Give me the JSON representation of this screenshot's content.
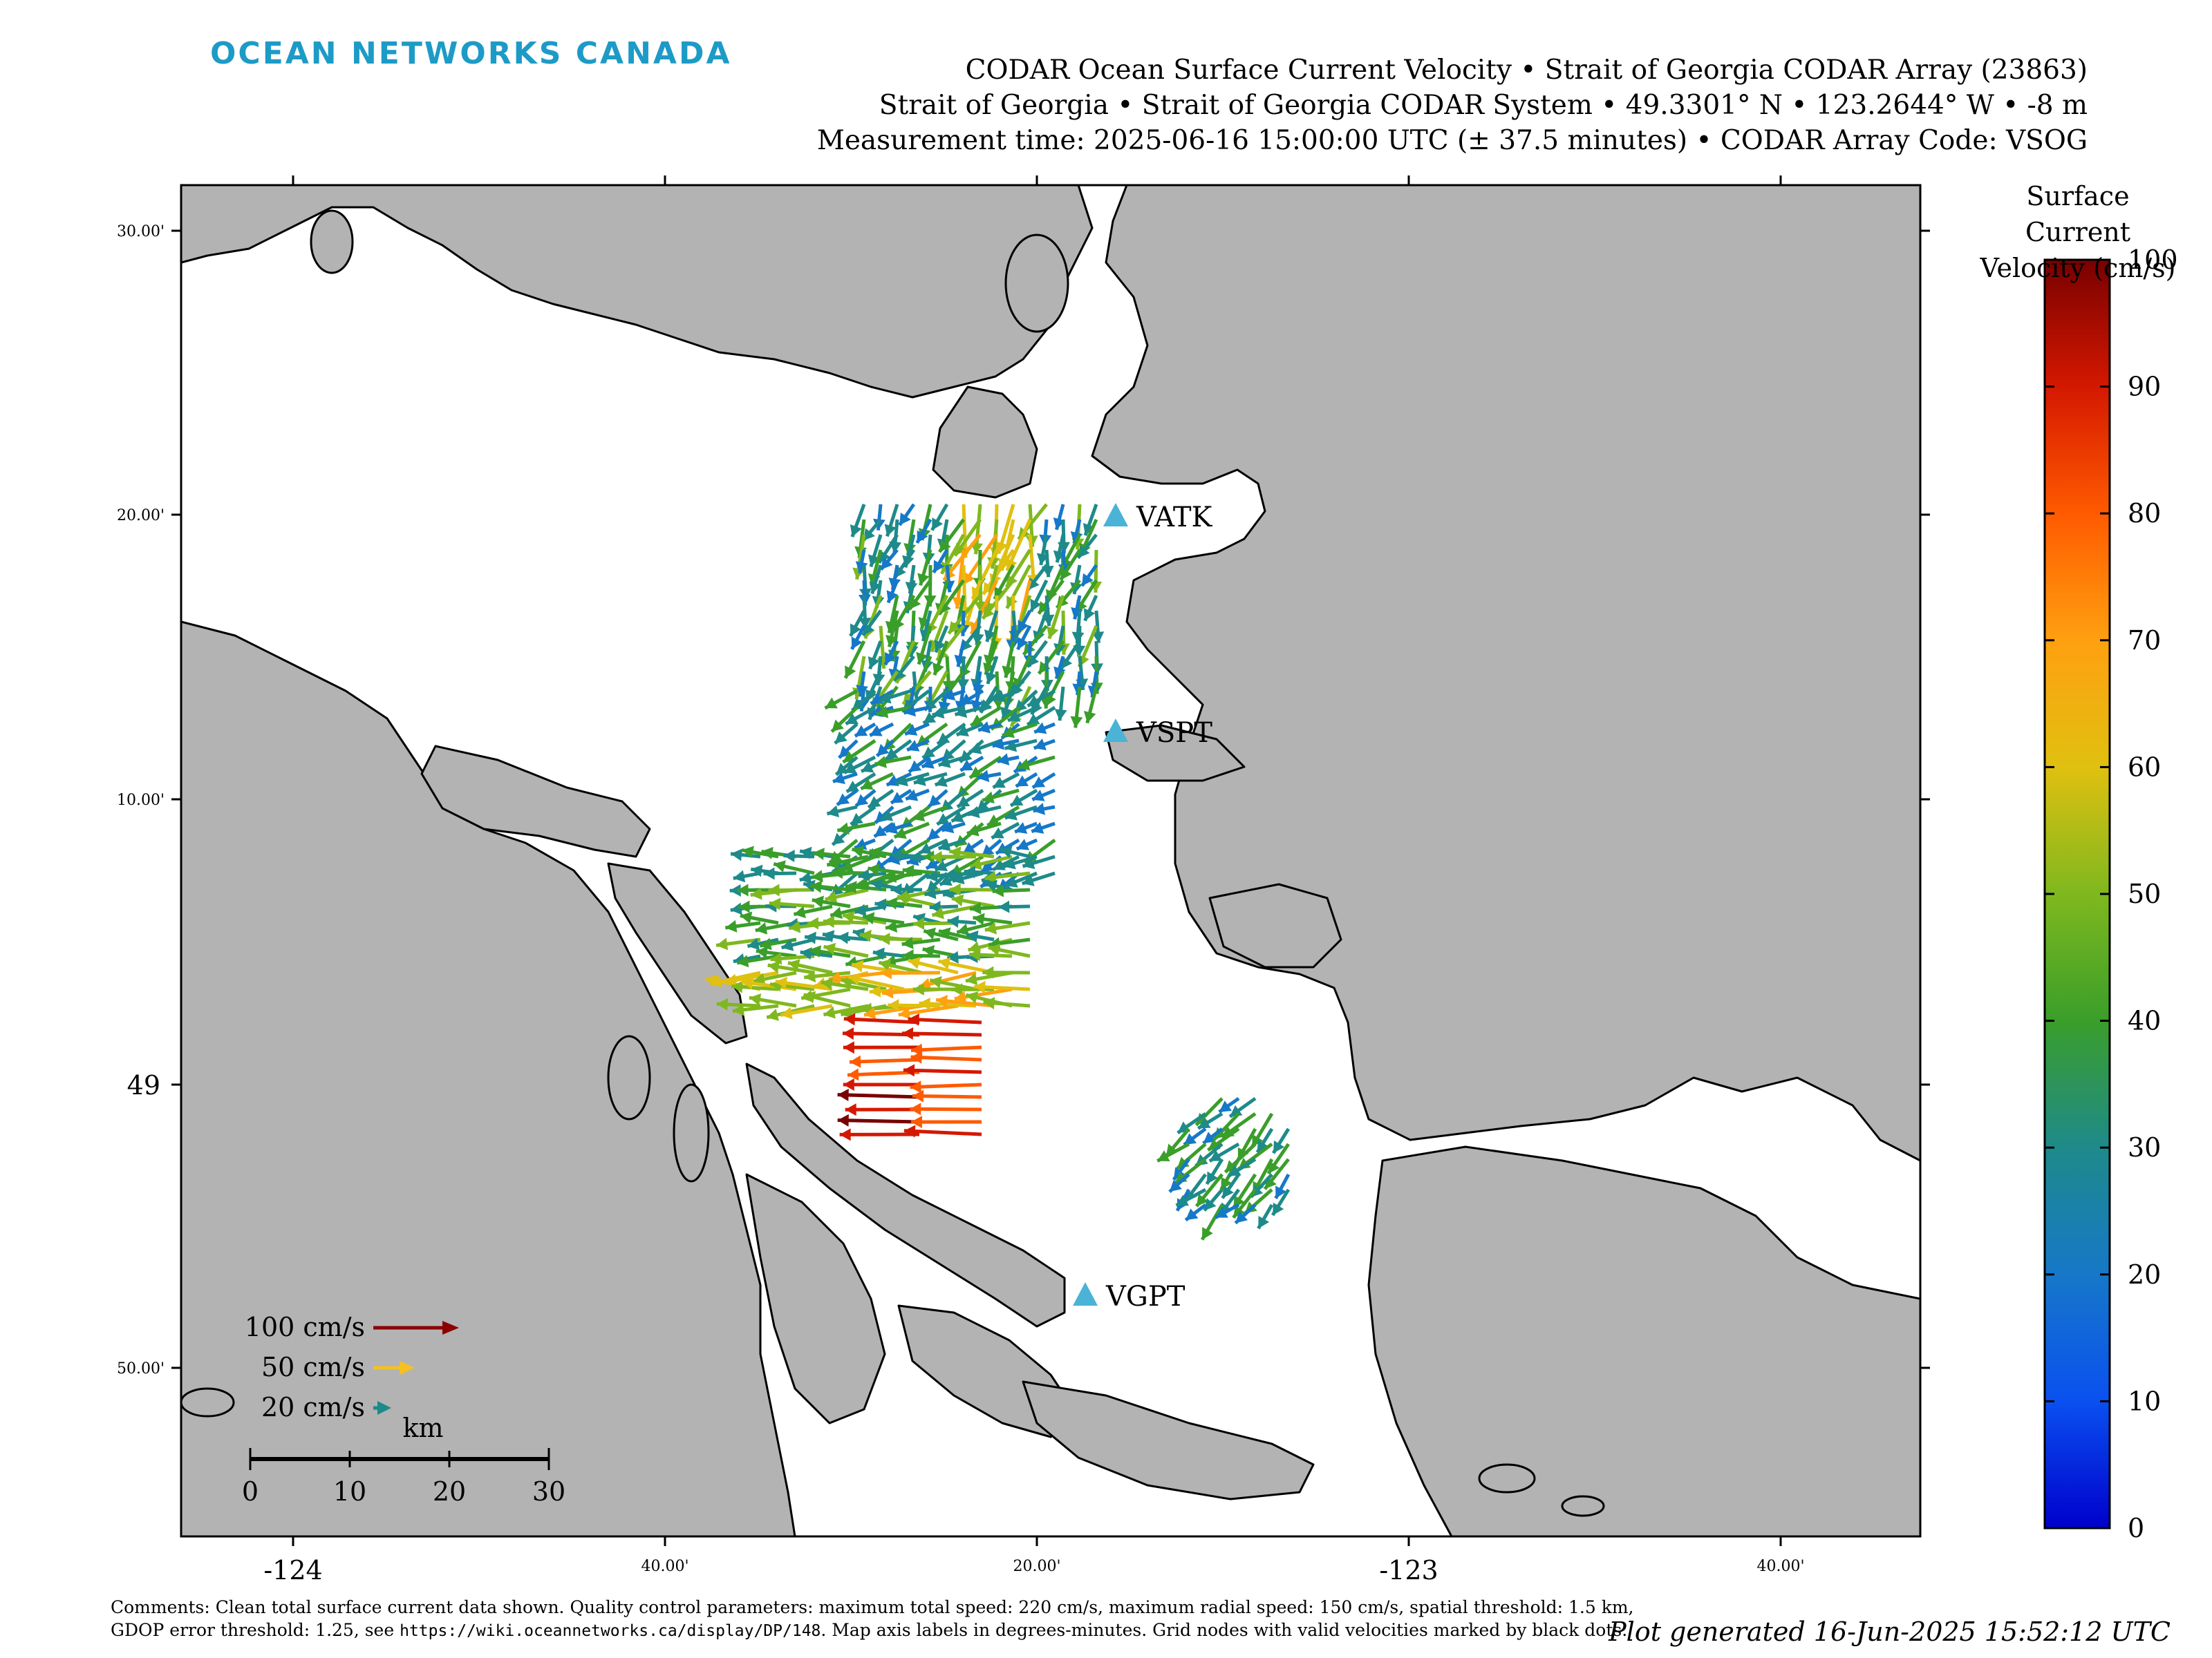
{
  "header": {
    "brand": "OCEAN NETWORKS CANADA",
    "title_line1": "CODAR Ocean Surface Current Velocity • Strait of Georgia CODAR Array (23863)",
    "title_line2": "Strait of Georgia • Strait of Georgia CODAR System • 49.3301° N • 123.2644° W • -8 m",
    "title_line3": "Measurement time: 2025-06-16 15:00:00 UTC (± 37.5 minutes) • CODAR Array Code: VSOG"
  },
  "map": {
    "colors": {
      "land": "#b3b3b3",
      "water": "#ffffff",
      "coast": "#000000",
      "station": "#4ab3d6"
    },
    "lat_ticks": [
      "30.00'",
      "20.00'",
      "10.00'",
      "49",
      "50.00'"
    ],
    "lon_ticks": [
      "-124",
      "40.00'",
      "20.00'",
      "-123",
      "40.00'"
    ],
    "stations": [
      {
        "code": "VATK",
        "icon": "triangle-marker"
      },
      {
        "code": "VSPT",
        "icon": "triangle-marker"
      },
      {
        "code": "VGPT",
        "icon": "triangle-marker"
      }
    ],
    "legend": {
      "speeds": [
        {
          "label": "100 cm/s",
          "color": "#8b0000"
        },
        {
          "label": "50 cm/s",
          "color": "#f5c020"
        },
        {
          "label": "20 cm/s",
          "color": "#1e8a8a"
        }
      ]
    },
    "scalebar": {
      "unit": "km",
      "ticks": [
        "0",
        "10",
        "20",
        "30"
      ]
    }
  },
  "colorbar": {
    "title_line1": "Surface Current",
    "title_line2": "Velocity (cm/s)",
    "min": 0,
    "max": 100,
    "ticks": [
      "0",
      "10",
      "20",
      "30",
      "40",
      "50",
      "60",
      "70",
      "80",
      "90",
      "100"
    ],
    "gradient": [
      "#0000cc",
      "#0a50f0",
      "#1678c8",
      "#1e8a8a",
      "#3a9e2a",
      "#7fb81e",
      "#e0c010",
      "#ffa010",
      "#ff5a00",
      "#d41800",
      "#780000"
    ]
  },
  "footer": {
    "comments_part1": "Comments: Clean total surface current data shown. Quality control parameters: maximum total speed: 220 cm/s, maximum radial speed: 150 cm/s, spatial threshold: 1.5 km, GDOP error threshold: 1.25, see",
    "comments_url": "https://wiki.oceannetworks.ca/display/DP/148",
    "comments_part2": ". Map axis labels in degrees-minutes. Grid nodes with valid velocities marked by black dots.",
    "generated": "Plot generated 16-Jun-2025 15:52:12 UTC"
  }
}
